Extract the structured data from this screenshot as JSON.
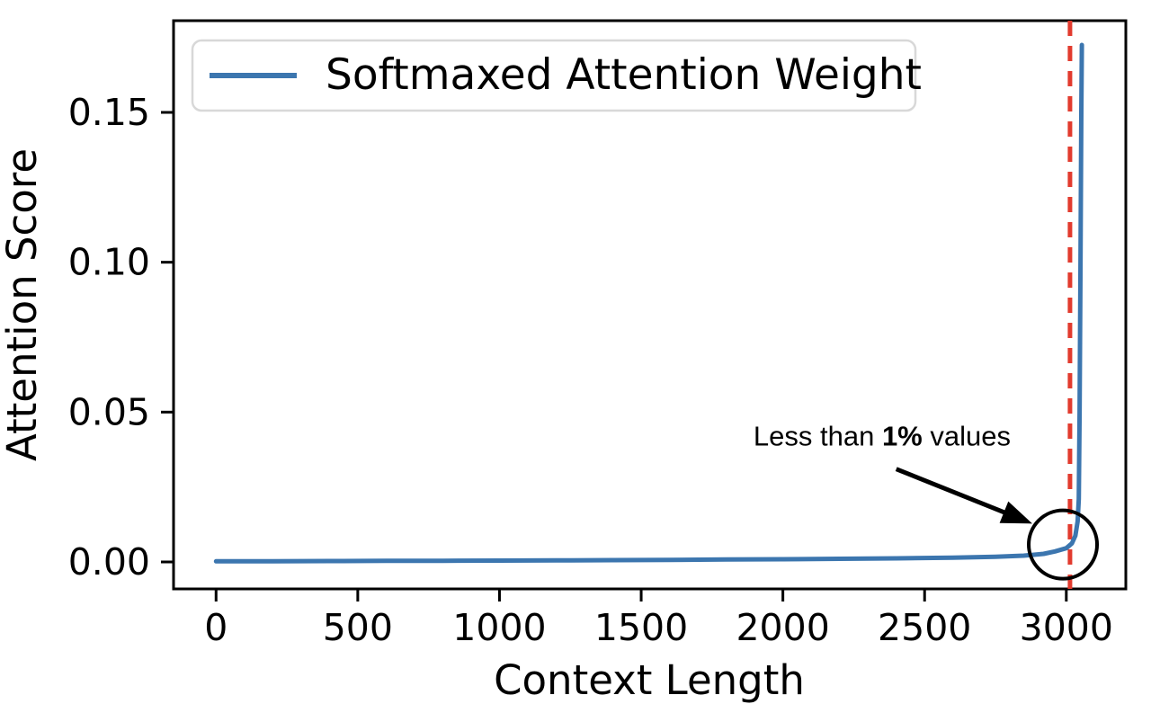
{
  "chart_data": {
    "type": "line",
    "title": "",
    "xlabel": "Context Length",
    "ylabel": "Attention Score",
    "x_ticks": [
      0,
      500,
      1000,
      1500,
      2000,
      2500,
      3000
    ],
    "y_ticks": [
      {
        "value": 0.0,
        "label": "0.00"
      },
      {
        "value": 0.05,
        "label": "0.05"
      },
      {
        "value": 0.1,
        "label": "0.10"
      },
      {
        "value": 0.15,
        "label": "0.15"
      }
    ],
    "xlim": [
      -150,
      3210
    ],
    "ylim": [
      -0.009,
      0.1806
    ],
    "grid": false,
    "legend": {
      "position": "upper left",
      "entries": [
        {
          "label": "Softmaxed Attention Weight",
          "color": "#3c76af"
        }
      ]
    },
    "series": [
      {
        "name": "Softmaxed Attention Weight",
        "color": "#3c76af",
        "points": [
          [
            0,
            0.0002
          ],
          [
            200,
            0.00025
          ],
          [
            400,
            0.0003
          ],
          [
            600,
            0.00035
          ],
          [
            800,
            0.0004
          ],
          [
            1000,
            0.00045
          ],
          [
            1200,
            0.0005
          ],
          [
            1400,
            0.0006
          ],
          [
            1600,
            0.0007
          ],
          [
            1800,
            0.0008
          ],
          [
            2000,
            0.0009
          ],
          [
            2200,
            0.00105
          ],
          [
            2400,
            0.0012
          ],
          [
            2600,
            0.0014
          ],
          [
            2750,
            0.0017
          ],
          [
            2850,
            0.0021
          ],
          [
            2920,
            0.0027
          ],
          [
            2960,
            0.0035
          ],
          [
            3000,
            0.0046
          ],
          [
            3020,
            0.0062
          ],
          [
            3032,
            0.0088
          ],
          [
            3040,
            0.0135
          ],
          [
            3044,
            0.021
          ],
          [
            3047,
            0.05
          ],
          [
            3050,
            0.1
          ],
          [
            3053,
            0.15
          ],
          [
            3055,
            0.1725
          ]
        ]
      }
    ],
    "reference_line": {
      "orientation": "vertical",
      "x": 3013,
      "color": "#e23b2e",
      "style": "dashed"
    },
    "annotation": {
      "text_prefix": "Less than ",
      "text_bold": "1%",
      "text_suffix": " values",
      "anchor": {
        "x": 2350,
        "y": 0.0388
      },
      "arrow": {
        "from": [
          2400,
          0.031
        ],
        "to": [
          2880,
          0.0128
        ]
      },
      "circle": {
        "cx": 2988,
        "cy": 0.0058,
        "radius_px": 38
      }
    },
    "colors": {
      "line": "#3c76af",
      "vline": "#e23b2e",
      "spine": "#000000",
      "text": "#000000",
      "legend_border": "#d8d8d8",
      "legend_fill": "#ffffff",
      "annotation": "#000000"
    }
  }
}
